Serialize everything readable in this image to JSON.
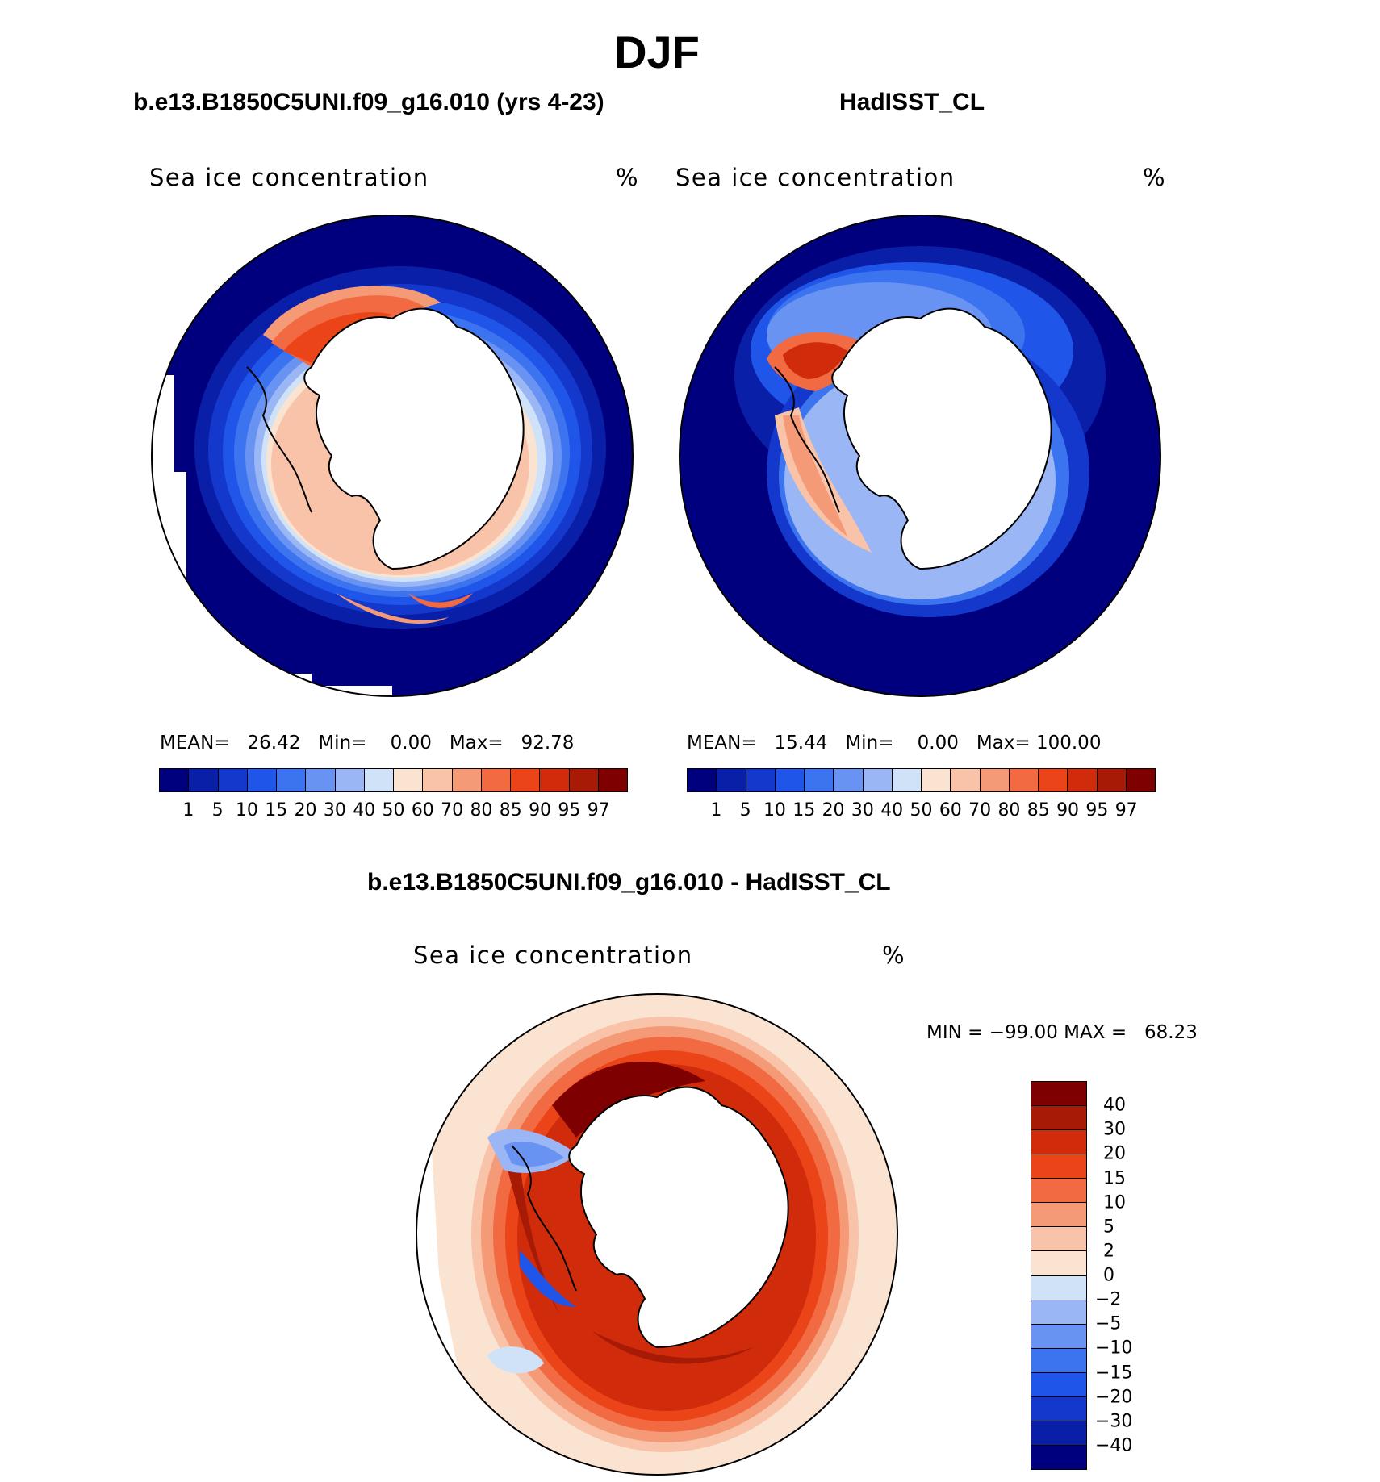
{
  "figure": {
    "title": "DJF",
    "units": "%",
    "variable": "Sea ice concentration"
  },
  "panels": [
    {
      "title": "b.e13.B1850C5UNI.f09_g16.010 (yrs 4-23)",
      "subtitle": "Sea ice concentration",
      "units": "%",
      "stats": {
        "mean_label": "MEAN=",
        "mean": "26.42",
        "min_label": "Min=",
        "min": "0.00",
        "max_label": "Max=",
        "max": "92.78"
      }
    },
    {
      "title": "HadISST_CL",
      "subtitle": "Sea ice concentration",
      "units": "%",
      "stats": {
        "mean_label": "MEAN=",
        "mean": "15.44",
        "min_label": "Min=",
        "min": "0.00",
        "max_label": "Max=",
        "max": "100.00"
      }
    },
    {
      "title": "b.e13.B1850C5UNI.f09_g16.010 - HadISST_CL",
      "subtitle": "Sea ice concentration",
      "units": "%",
      "stats": {
        "min_label": "MIN =",
        "min": "−99.00",
        "max_label": "MAX =",
        "max": "68.23"
      }
    }
  ],
  "colorbars": {
    "absolute": {
      "levels": [
        "1",
        "5",
        "10",
        "15",
        "20",
        "30",
        "40",
        "50",
        "60",
        "70",
        "80",
        "85",
        "90",
        "95",
        "97"
      ],
      "colors": [
        "#00007f",
        "#0a1fa8",
        "#1438cc",
        "#1f55e8",
        "#3c74f0",
        "#6993f2",
        "#9ab6f5",
        "#cfe2f8",
        "#fbe3d1",
        "#f9c3aa",
        "#f59a77",
        "#f26a41",
        "#eb4419",
        "#d02b0a",
        "#a61a06",
        "#7f0000"
      ]
    },
    "difference": {
      "levels": [
        "40",
        "30",
        "20",
        "15",
        "10",
        "5",
        "2",
        "0",
        "−2",
        "−5",
        "−10",
        "−15",
        "−20",
        "−30",
        "−40"
      ],
      "colors": [
        "#7f0000",
        "#a61a06",
        "#d02b0a",
        "#eb4419",
        "#f26a41",
        "#f59a77",
        "#f9c3aa",
        "#fbe3d1",
        "#cfe2f8",
        "#9ab6f5",
        "#6993f2",
        "#3c74f0",
        "#1f55e8",
        "#1438cc",
        "#0a1fa8",
        "#00007f"
      ]
    }
  }
}
